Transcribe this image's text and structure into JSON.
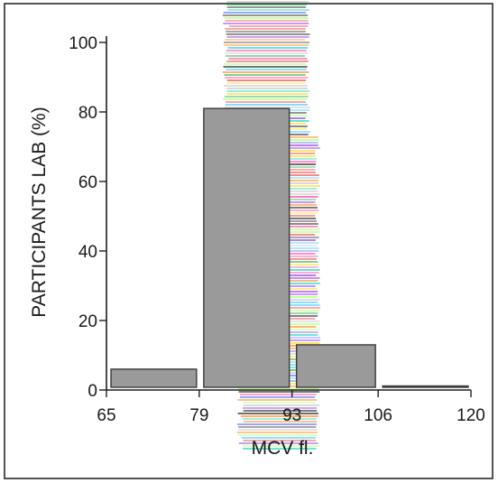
{
  "chart_data": {
    "type": "bar",
    "bins": [
      {
        "from": 65,
        "to": 79,
        "value": 6
      },
      {
        "from": 79,
        "to": 93,
        "value": 81
      },
      {
        "from": 93,
        "to": 106,
        "value": 13
      },
      {
        "from": 106,
        "to": 120,
        "value": 0
      }
    ],
    "x_ticks": [
      "65",
      "79",
      "93",
      "106",
      "120"
    ],
    "y_ticks": [
      "0",
      "20",
      "40",
      "60",
      "80",
      "100"
    ],
    "ylabel": "PARTICIPANTS LAB (%)",
    "xlabel": "MCV fl.",
    "ylim": [
      0,
      100
    ],
    "xlim": [
      65,
      120
    ],
    "grid": false
  },
  "colors": {
    "bar_fill": "#9a9a9a",
    "bar_stroke": "#3a3a3a",
    "axis": "#1e1e1e"
  }
}
